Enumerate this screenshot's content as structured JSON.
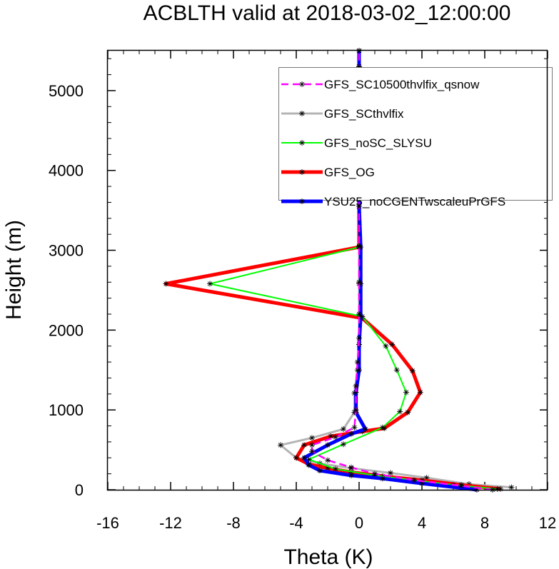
{
  "chart_data": {
    "type": "line",
    "title": "ACBLTH valid at 2018-03-02_12:00:00",
    "xlabel": "Theta (K)",
    "ylabel": "Height (m)",
    "xlim": [
      -16,
      12
    ],
    "ylim": [
      0,
      5500
    ],
    "xticks": [
      "-16",
      "-12",
      "-8",
      "-4",
      "0",
      "4",
      "8",
      "12"
    ],
    "yticks": [
      "0",
      "1000",
      "2000",
      "3000",
      "4000",
      "5000"
    ],
    "grid": false,
    "legend_position": "top-right",
    "series": [
      {
        "name": "GFS_SC10500thvlfix_qsnow",
        "color": "#ff00ff",
        "dash": true,
        "points": [
          [
            8.5,
            0
          ],
          [
            6.5,
            50
          ],
          [
            3.5,
            120
          ],
          [
            1.0,
            200
          ],
          [
            -0.5,
            280
          ],
          [
            -2.0,
            370
          ],
          [
            -3.0,
            480
          ],
          [
            -3.0,
            560
          ],
          [
            -1.5,
            660
          ],
          [
            -0.3,
            780
          ],
          [
            -0.2,
            1000
          ],
          [
            -0.2,
            1300
          ],
          [
            -0.1,
            1600
          ],
          [
            0.0,
            1900
          ],
          [
            0.0,
            2200
          ],
          [
            0.0,
            2600
          ],
          [
            0.0,
            3050
          ],
          [
            0.0,
            3550
          ],
          [
            0.0,
            4100
          ],
          [
            0.0,
            4700
          ],
          [
            0.0,
            5300
          ],
          [
            0.0,
            5500
          ]
        ]
      },
      {
        "name": "GFS_SCthvlfix",
        "color": "#b4b4b4",
        "dash": false,
        "points": [
          [
            9.7,
            30
          ],
          [
            7.0,
            70
          ],
          [
            4.3,
            150
          ],
          [
            2.0,
            210
          ],
          [
            -0.5,
            270
          ],
          [
            -2.5,
            330
          ],
          [
            -4.0,
            400
          ],
          [
            -5.0,
            560
          ],
          [
            -3.0,
            650
          ],
          [
            -1.0,
            760
          ],
          [
            -0.3,
            970
          ],
          [
            -0.3,
            1210
          ],
          [
            -0.1,
            1500
          ],
          [
            0.0,
            1820
          ],
          [
            0.0,
            2170
          ],
          [
            0.0,
            2580
          ],
          [
            0.0,
            3040
          ],
          [
            0.0,
            3550
          ],
          [
            0.0,
            4110
          ],
          [
            0.0,
            4710
          ],
          [
            0.0,
            5270
          ],
          [
            0.0,
            5500
          ]
        ]
      },
      {
        "name": "GFS_noSC_SLYSU",
        "color": "#00ff00",
        "dash": false,
        "points": [
          [
            8.8,
            10
          ],
          [
            6.0,
            60
          ],
          [
            3.5,
            120
          ],
          [
            1.0,
            180
          ],
          [
            -1.5,
            260
          ],
          [
            -3.2,
            380
          ],
          [
            -1.0,
            570
          ],
          [
            1.5,
            780
          ],
          [
            2.6,
            980
          ],
          [
            3.0,
            1220
          ],
          [
            2.4,
            1500
          ],
          [
            1.7,
            1800
          ],
          [
            0.2,
            2170
          ],
          [
            -9.5,
            2580
          ],
          [
            0.0,
            3040
          ],
          [
            0.0,
            3550
          ],
          [
            0.0,
            4110
          ],
          [
            0.0,
            4710
          ],
          [
            0.0,
            5300
          ],
          [
            0.0,
            5500
          ]
        ]
      },
      {
        "name": "GFS_OG",
        "color": "#ff0000",
        "dash": false,
        "points": [
          [
            9.0,
            10
          ],
          [
            6.5,
            60
          ],
          [
            4.0,
            120
          ],
          [
            1.5,
            170
          ],
          [
            -0.5,
            220
          ],
          [
            -2.0,
            270
          ],
          [
            -3.2,
            320
          ],
          [
            -4.0,
            400
          ],
          [
            -3.5,
            560
          ],
          [
            -1.8,
            670
          ],
          [
            0.2,
            730
          ],
          [
            1.6,
            770
          ],
          [
            3.1,
            970
          ],
          [
            3.9,
            1220
          ],
          [
            3.4,
            1490
          ],
          [
            2.1,
            1820
          ],
          [
            0.2,
            2150
          ],
          [
            -12.3,
            2580
          ],
          [
            0.0,
            3040
          ],
          [
            0.0,
            3550
          ],
          [
            0.0,
            4110
          ],
          [
            0.0,
            4710
          ],
          [
            0.0,
            5300
          ],
          [
            0.0,
            5500
          ]
        ]
      },
      {
        "name": "YSU25_noCGENTwscaleuPrGFS",
        "color": "#0000ff",
        "dash": false,
        "points": [
          [
            7.5,
            0
          ],
          [
            4.0,
            80
          ],
          [
            1.5,
            140
          ],
          [
            -0.5,
            180
          ],
          [
            -2.5,
            240
          ],
          [
            -3.2,
            310
          ],
          [
            -3.5,
            400
          ],
          [
            -2.0,
            560
          ],
          [
            -0.5,
            700
          ],
          [
            0.4,
            760
          ],
          [
            -0.2,
            970
          ],
          [
            -0.2,
            1220
          ],
          [
            0.0,
            1500
          ],
          [
            0.0,
            1820
          ],
          [
            0.1,
            2170
          ],
          [
            0.1,
            2580
          ],
          [
            0.1,
            3040
          ],
          [
            0.0,
            3550
          ],
          [
            0.0,
            4110
          ],
          [
            0.0,
            4710
          ],
          [
            0.0,
            5300
          ],
          [
            0.0,
            5500
          ]
        ]
      }
    ]
  }
}
